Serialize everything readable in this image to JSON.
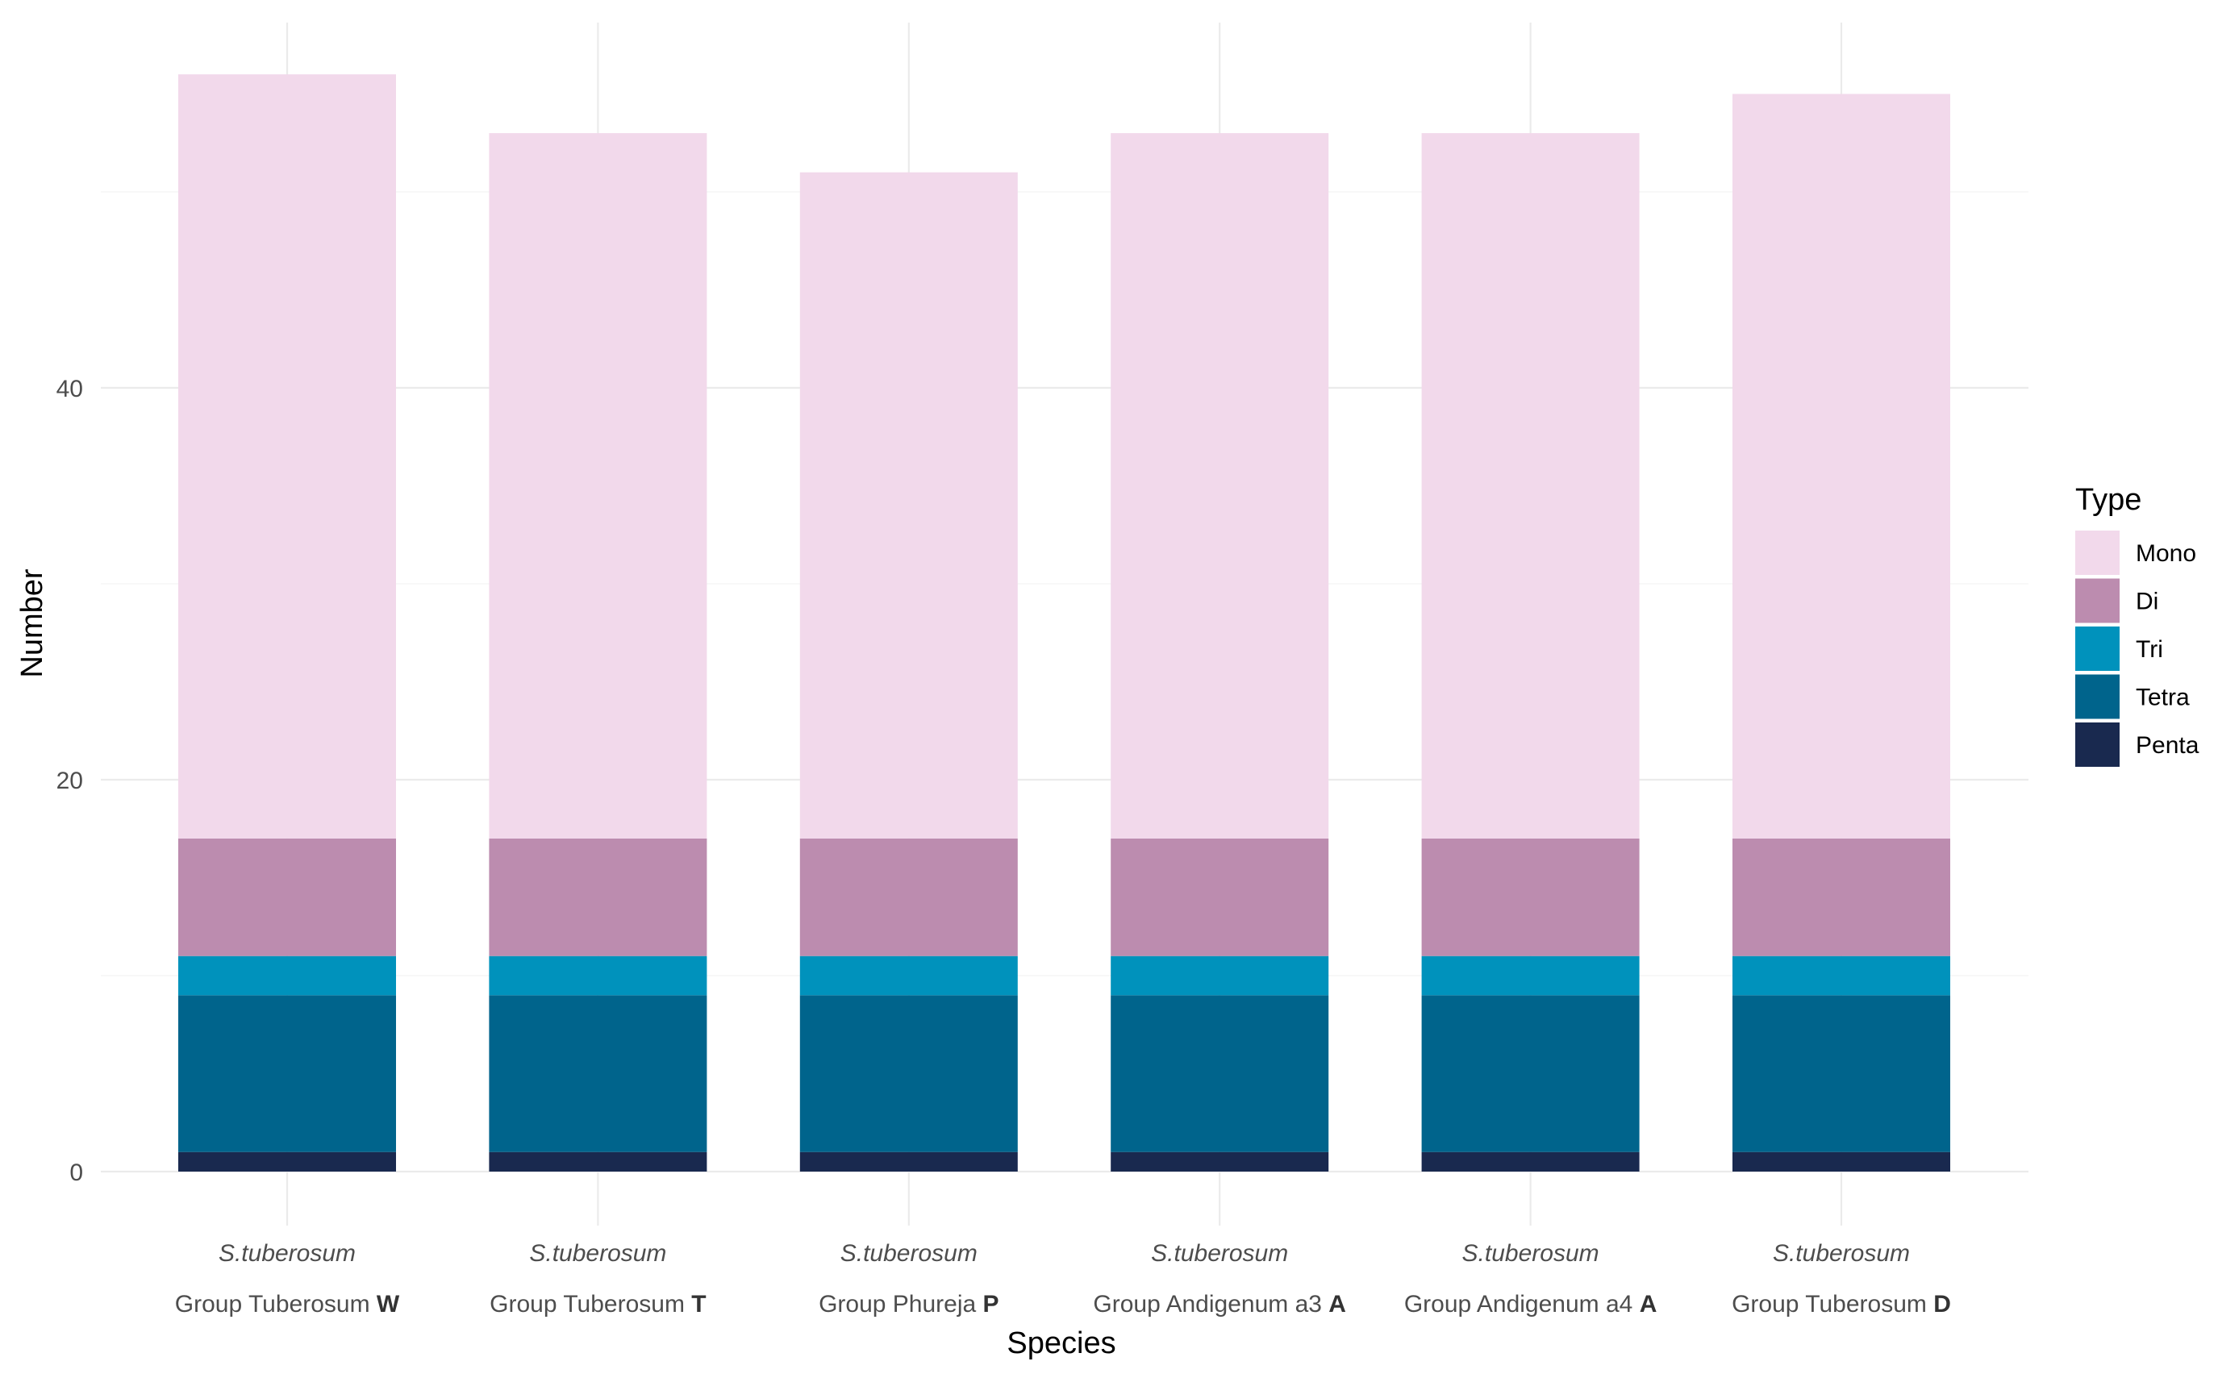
{
  "chart_data": {
    "type": "bar",
    "stacked": true,
    "title": "",
    "xlabel": "Species",
    "ylabel": "Number",
    "ylim": [
      0,
      58
    ],
    "yticks": [
      0,
      20,
      40
    ],
    "grid": true,
    "legend_title": "Type",
    "legend_position": "right",
    "categories": [
      {
        "species": "S.tuberosum",
        "group": "Group Tuberosum",
        "code": "W"
      },
      {
        "species": "S.tuberosum",
        "group": "Group Tuberosum",
        "code": "T"
      },
      {
        "species": "S.tuberosum",
        "group": "Group Phureja",
        "code": "P"
      },
      {
        "species": "S.tuberosum",
        "group": "Group Andigenum a3",
        "code": "A"
      },
      {
        "species": "S.tuberosum",
        "group": "Group Andigenum a4",
        "code": "A"
      },
      {
        "species": "S.tuberosum",
        "group": "Group Tuberosum",
        "code": "D"
      }
    ],
    "series": [
      {
        "name": "Mono",
        "color": "#f2d9eb",
        "values": [
          39,
          36,
          34,
          36,
          36,
          38
        ]
      },
      {
        "name": "Di",
        "color": "#bc8caf",
        "values": [
          6,
          6,
          6,
          6,
          6,
          6
        ]
      },
      {
        "name": "Tri",
        "color": "#0092bc",
        "values": [
          2,
          2,
          2,
          2,
          2,
          2
        ]
      },
      {
        "name": "Tetra",
        "color": "#00648c",
        "values": [
          8,
          8,
          8,
          8,
          8,
          8
        ]
      },
      {
        "name": "Penta",
        "color": "#19294f",
        "values": [
          1,
          1,
          1,
          1,
          1,
          1
        ]
      }
    ]
  }
}
